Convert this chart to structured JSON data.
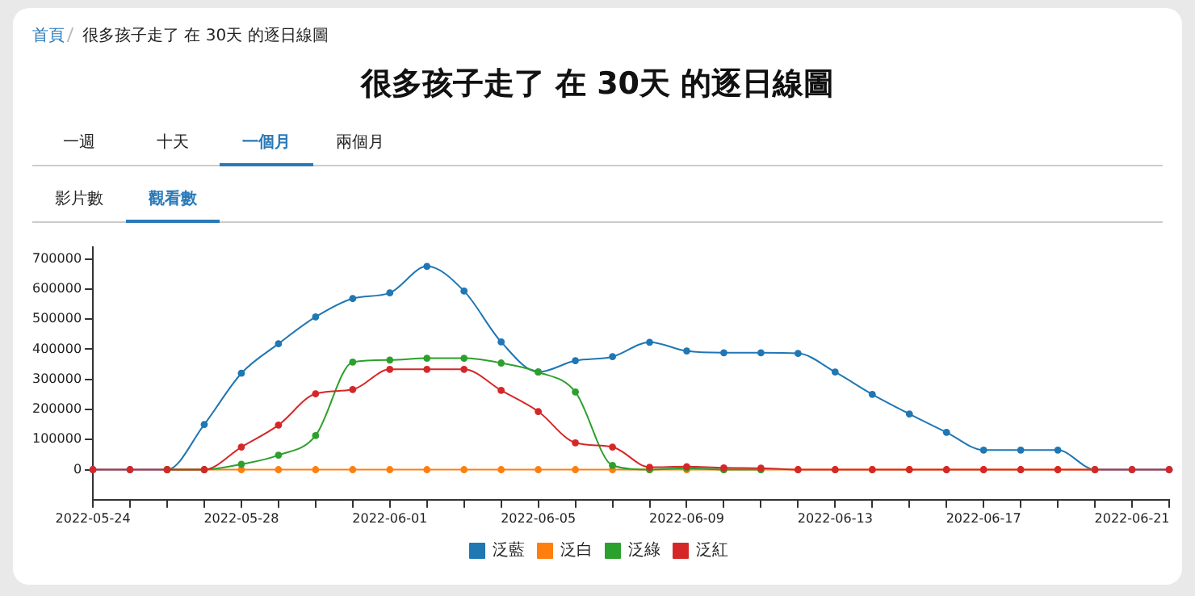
{
  "chart_data": {
    "type": "line",
    "title": "很多孩子走了 在 30天 的逐日線圖",
    "annotations": [
      "首頁",
      "很多孩子走了 在 30天 的逐日線圖",
      "一週",
      "十天",
      "一個月",
      "兩個月",
      "影片數",
      "觀看數"
    ],
    "categories": [
      "2022-05-24",
      null,
      null,
      null,
      "2022-05-28",
      null,
      null,
      null,
      "2022-06-01",
      null,
      null,
      null,
      "2022-06-05",
      null,
      null,
      null,
      "2022-06-09",
      null,
      null,
      null,
      "2022-06-13",
      null,
      null,
      null,
      "2022-06-17",
      null,
      null,
      null,
      "2022-06-21",
      null
    ],
    "series": [
      {
        "name": "泛藍",
        "color": "#1f77b4",
        "values": [
          0,
          0,
          0,
          150000,
          320000,
          418000,
          507000,
          568000,
          587000,
          675000,
          593000,
          424000,
          324000,
          362000,
          375000,
          423000,
          394000,
          388000,
          388000,
          386000,
          324000,
          250000,
          185000,
          124000,
          65000,
          65000,
          65000,
          0,
          0,
          0
        ]
      },
      {
        "name": "泛白",
        "color": "#ff7f0e",
        "values": [
          null,
          null,
          0,
          0,
          0,
          0,
          0,
          0,
          0,
          0,
          0,
          0,
          0,
          0,
          0,
          0,
          0,
          0,
          0,
          0,
          0,
          0,
          0,
          0,
          0,
          0,
          0,
          0,
          null,
          null
        ]
      },
      {
        "name": "泛綠",
        "color": "#2ca02c",
        "values": [
          null,
          null,
          0,
          0,
          18000,
          48000,
          113000,
          357000,
          364000,
          370000,
          370000,
          354000,
          324000,
          258000,
          14000,
          0,
          5000,
          0,
          0,
          null,
          null,
          null,
          null,
          null,
          null,
          null,
          null,
          null,
          null,
          null
        ]
      },
      {
        "name": "泛紅",
        "color": "#d62728",
        "values": [
          0,
          0,
          0,
          0,
          75000,
          148000,
          252000,
          266000,
          333000,
          333000,
          333000,
          263000,
          193000,
          89000,
          75000,
          8000,
          10000,
          6000,
          5000,
          0,
          0,
          0,
          0,
          0,
          0,
          0,
          0,
          0,
          0,
          0
        ]
      }
    ],
    "ylim": [
      -100000,
      740000
    ],
    "yticks": [
      0,
      100000,
      200000,
      300000,
      400000,
      500000,
      600000,
      700000
    ],
    "grid": false,
    "legend": "bottom",
    "marker": "circle",
    "line_style": "solid"
  }
}
